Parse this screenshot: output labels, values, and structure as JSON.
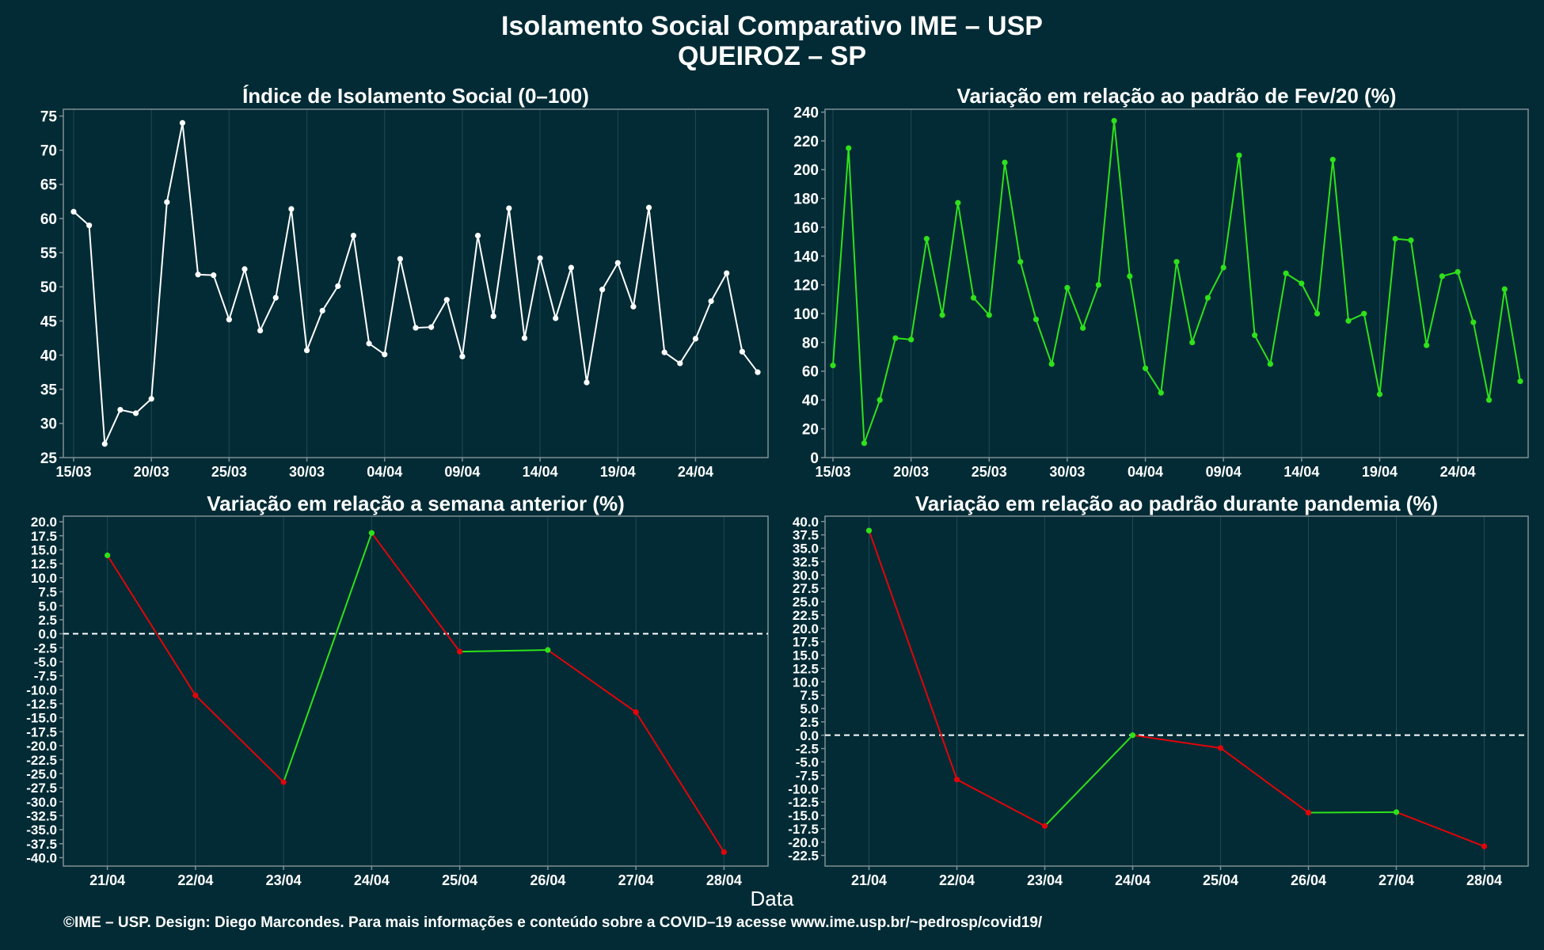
{
  "header": {
    "title_line1": "Isolamento Social Comparativo IME – USP",
    "title_line2": "QUEIROZ – SP"
  },
  "x_caption": "Data",
  "footer": "©IME – USP. Design: Diego Marcondes. Para mais informações e conteúdo sobre a COVID–19 acesse www.ime.usp.br/~pedrosp/covid19/",
  "colors": {
    "background": "#022b35",
    "white_series": "#ffffff",
    "green": "#2fe11a",
    "red": "#e0050a",
    "axis": "#7f8f94",
    "grid": "#1f4a54"
  },
  "chart_data": [
    {
      "type": "line",
      "title": "Índice de Isolamento Social (0–100)",
      "series_color": "white",
      "x": [
        "15/03",
        "16/03",
        "17/03",
        "18/03",
        "19/03",
        "20/03",
        "21/03",
        "22/03",
        "23/03",
        "24/03",
        "25/03",
        "26/03",
        "27/03",
        "28/03",
        "29/03",
        "30/03",
        "31/03",
        "01/04",
        "02/04",
        "03/04",
        "04/04",
        "05/04",
        "06/04",
        "07/04",
        "08/04",
        "09/04",
        "10/04",
        "11/04",
        "12/04",
        "13/04",
        "14/04",
        "15/04",
        "16/04",
        "17/04",
        "18/04",
        "19/04",
        "20/04",
        "21/04",
        "22/04",
        "23/04",
        "24/04",
        "25/04",
        "26/04",
        "27/04",
        "28/04"
      ],
      "values": [
        61,
        59,
        27,
        32,
        31.5,
        33.6,
        62.4,
        74,
        51.8,
        51.7,
        45.2,
        52.6,
        43.6,
        48.4,
        61.4,
        40.7,
        46.5,
        50.1,
        57.5,
        41.7,
        40.1,
        54.1,
        44,
        44.1,
        48.1,
        39.8,
        57.5,
        45.7,
        61.5,
        42.5,
        54.2,
        45.4,
        52.8,
        36,
        49.6,
        53.5,
        47.1,
        61.6,
        40.4,
        38.8,
        42.4,
        47.9,
        52,
        40.5,
        37.5
      ],
      "xticks": [
        "15/03",
        "20/03",
        "25/03",
        "30/03",
        "04/04",
        "09/04",
        "14/04",
        "19/04",
        "24/04"
      ],
      "ylim": [
        25,
        76
      ],
      "yticks": [
        25,
        30,
        35,
        40,
        45,
        50,
        55,
        60,
        65,
        70,
        75
      ]
    },
    {
      "type": "line",
      "title": "Variação em relação ao padrão de Fev/20 (%)",
      "series_color": "green",
      "x": [
        "15/03",
        "16/03",
        "17/03",
        "18/03",
        "19/03",
        "20/03",
        "21/03",
        "22/03",
        "23/03",
        "24/03",
        "25/03",
        "26/03",
        "27/03",
        "28/03",
        "29/03",
        "30/03",
        "31/03",
        "01/04",
        "02/04",
        "03/04",
        "04/04",
        "05/04",
        "06/04",
        "07/04",
        "08/04",
        "09/04",
        "10/04",
        "11/04",
        "12/04",
        "13/04",
        "14/04",
        "15/04",
        "16/04",
        "17/04",
        "18/04",
        "19/04",
        "20/04",
        "21/04",
        "22/04",
        "23/04",
        "24/04",
        "25/04",
        "26/04",
        "27/04",
        "28/04"
      ],
      "values": [
        64,
        215,
        10,
        40,
        83,
        82,
        152,
        99,
        177,
        111,
        99,
        205,
        136,
        96,
        65,
        118,
        90,
        120,
        234,
        126,
        62,
        45,
        136,
        80,
        111,
        132,
        210,
        85,
        65,
        128,
        121,
        100,
        207,
        95,
        100,
        44,
        152,
        151,
        78,
        126,
        129,
        94,
        40,
        117,
        53
      ],
      "xticks": [
        "15/03",
        "20/03",
        "25/03",
        "30/03",
        "04/04",
        "09/04",
        "14/04",
        "19/04",
        "24/04"
      ],
      "ylim": [
        0,
        242
      ],
      "yticks": [
        0,
        20,
        40,
        60,
        80,
        100,
        120,
        140,
        160,
        180,
        200,
        220,
        240
      ]
    },
    {
      "type": "line",
      "title": "Variação em relação a semana anterior (%)",
      "series_color": "segment-colored: green rising, red falling",
      "x": [
        "21/04",
        "22/04",
        "23/04",
        "24/04",
        "25/04",
        "26/04",
        "27/04",
        "28/04"
      ],
      "values": [
        14,
        -11,
        -26.5,
        18,
        -3.2,
        -2.9,
        -14,
        -39
      ],
      "ylim": [
        -41.5,
        21
      ],
      "yticks": [
        -40,
        -37.5,
        -35,
        -32.5,
        -30,
        -27.5,
        -25,
        -22.5,
        -20,
        -17.5,
        -15,
        -12.5,
        -10,
        -7.5,
        -5,
        -2.5,
        0,
        2.5,
        5,
        7.5,
        10,
        12.5,
        15,
        17.5,
        20
      ],
      "reference_line": 0
    },
    {
      "type": "line",
      "title": "Variação em relação ao padrão durante pandemia (%)",
      "series_color": "segment-colored: green rising, red falling",
      "x": [
        "21/04",
        "22/04",
        "23/04",
        "24/04",
        "25/04",
        "26/04",
        "27/04",
        "28/04"
      ],
      "values": [
        38.3,
        -8.3,
        -17,
        0,
        -2.4,
        -14.5,
        -14.4,
        -20.8
      ],
      "ylim": [
        -24.5,
        41
      ],
      "yticks": [
        -22.5,
        -20,
        -17.5,
        -15,
        -12.5,
        -10,
        -7.5,
        -5,
        -2.5,
        0,
        2.5,
        5,
        7.5,
        10,
        12.5,
        15,
        17.5,
        20,
        22.5,
        25,
        27.5,
        30,
        32.5,
        35,
        37.5,
        40
      ],
      "reference_line": 0
    }
  ]
}
